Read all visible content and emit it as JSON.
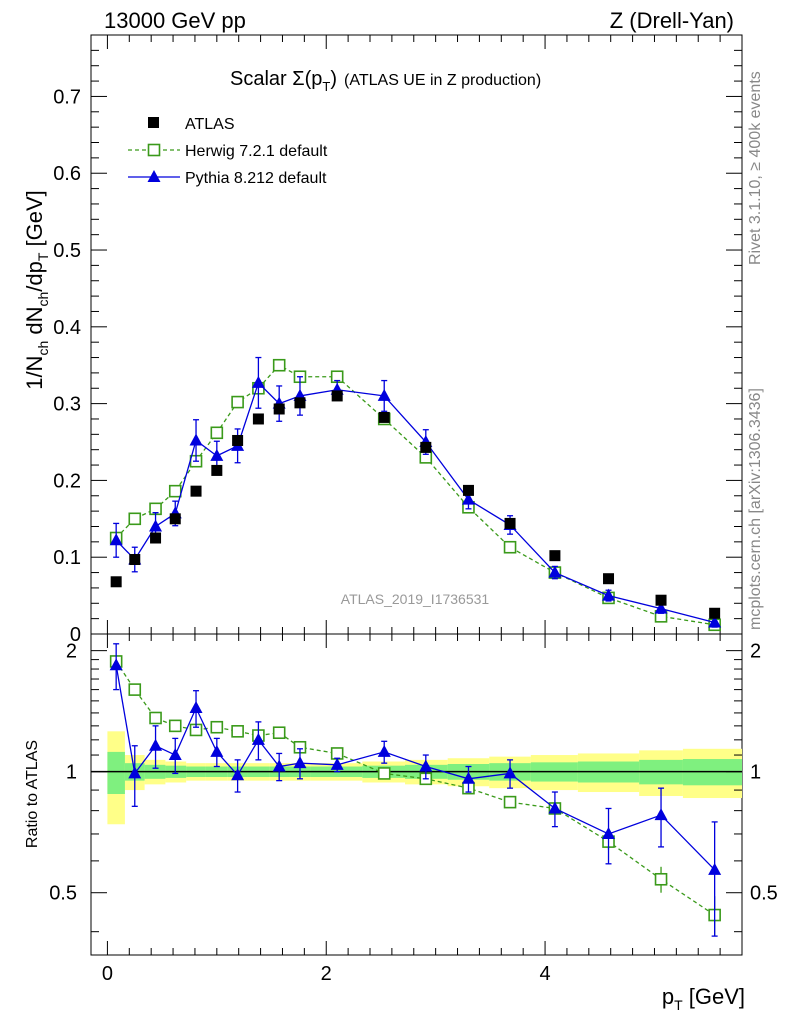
{
  "header": {
    "left": "13000 GeV pp",
    "right": "Z (Drell-Yan)"
  },
  "title": {
    "main": "Scalar Σ(p",
    "sub": "T",
    "close": ")",
    "suffix": "(ATLAS UE in Z production)"
  },
  "side_labels": {
    "rivet": "Rivet 3.1.10, ≥ 400k events",
    "mcplots": "mcplots.cern.ch [arXiv:1306.3436]"
  },
  "watermark": "ATLAS_2019_I1736531",
  "axes": {
    "ylabel_main": "1/N_ch dN_ch/dp_T [GeV]",
    "ylabel_ratio": "Ratio to ATLAS",
    "xlabel": "p_T [GeV]"
  },
  "colors": {
    "atlas": "#000000",
    "herwig": "#3a9a1a",
    "pythia": "#0000dd",
    "band_inner": "#7ff07f",
    "band_outer": "#ffff88"
  },
  "chart_data": [
    {
      "type": "scatter",
      "panel": "main",
      "title": "Scalar Σ(p_T) (ATLAS UE in Z production)",
      "xlabel": "p_T [GeV]",
      "ylabel": "1/N_ch dN_ch/dp_T [GeV]",
      "xlim": [
        -0.15,
        5.8
      ],
      "ylim": [
        0,
        0.78
      ],
      "yticks": [
        0,
        0.1,
        0.2,
        0.3,
        0.4,
        0.5,
        0.6,
        0.7
      ],
      "ytick_labels": [
        "0",
        "0.1",
        "0.2",
        "0.3",
        "0.4",
        "0.5",
        "0.6",
        "0.7"
      ],
      "legend_position": "top-left",
      "series": [
        {
          "name": "ATLAS",
          "style": "marker",
          "x": [
            0.08,
            0.25,
            0.44,
            0.62,
            0.81,
            1.0,
            1.19,
            1.38,
            1.57,
            1.76,
            2.1,
            2.53,
            2.91,
            3.3,
            3.68,
            4.09,
            4.58,
            5.06,
            5.55
          ],
          "y": [
            0.068,
            0.097,
            0.125,
            0.15,
            0.186,
            0.213,
            0.252,
            0.28,
            0.293,
            0.301,
            0.31,
            0.282,
            0.243,
            0.187,
            0.144,
            0.102,
            0.072,
            0.044,
            0.027
          ]
        },
        {
          "name": "Herwig 7.2.1 default",
          "style": "dashed-open-square",
          "x": [
            0.08,
            0.25,
            0.44,
            0.62,
            0.81,
            1.0,
            1.19,
            1.38,
            1.57,
            1.76,
            2.1,
            2.53,
            2.91,
            3.3,
            3.68,
            4.09,
            4.58,
            5.06,
            5.55
          ],
          "y": [
            0.125,
            0.15,
            0.163,
            0.186,
            0.225,
            0.262,
            0.302,
            0.32,
            0.35,
            0.335,
            0.335,
            0.28,
            0.23,
            0.165,
            0.113,
            0.08,
            0.047,
            0.023,
            0.012
          ],
          "yerr": [
            0.004,
            0.004,
            0.004,
            0.004,
            0.005,
            0.005,
            0.006,
            0.006,
            0.006,
            0.006,
            0.006,
            0.005,
            0.005,
            0.004,
            0.004,
            0.003,
            0.003,
            0.002,
            0.002
          ]
        },
        {
          "name": "Pythia 8.212 default",
          "style": "solid-triangle",
          "x": [
            0.08,
            0.25,
            0.44,
            0.62,
            0.81,
            1.0,
            1.19,
            1.38,
            1.57,
            1.76,
            2.1,
            2.53,
            2.91,
            3.3,
            3.68,
            4.09,
            4.58,
            5.06,
            5.55
          ],
          "y": [
            0.122,
            0.097,
            0.14,
            0.157,
            0.252,
            0.232,
            0.245,
            0.327,
            0.3,
            0.31,
            0.318,
            0.31,
            0.25,
            0.175,
            0.142,
            0.08,
            0.05,
            0.033,
            0.015
          ],
          "yerr": [
            0.022,
            0.016,
            0.018,
            0.016,
            0.027,
            0.019,
            0.022,
            0.033,
            0.023,
            0.025,
            0.012,
            0.02,
            0.016,
            0.012,
            0.012,
            0.008,
            0.007,
            0.006,
            0.006
          ]
        }
      ]
    },
    {
      "type": "scatter",
      "panel": "ratio",
      "xlabel": "p_T [GeV]",
      "ylabel": "Ratio to ATLAS",
      "xlim": [
        -0.15,
        5.8
      ],
      "ylim": [
        0.35,
        2.2
      ],
      "yticks": [
        0.5,
        1,
        2
      ],
      "ytick_labels": [
        "0.5",
        "1",
        "2"
      ],
      "xticks": [
        0,
        2,
        4
      ],
      "xtick_labels": [
        "0",
        "2",
        "4"
      ],
      "reference_line": 1,
      "band_edges": [
        0,
        0.16,
        0.34,
        0.53,
        0.72,
        0.9,
        1.1,
        1.28,
        1.48,
        1.66,
        1.86,
        2.33,
        2.72,
        3.11,
        3.49,
        3.87,
        4.3,
        4.86,
        5.26,
        5.85
      ],
      "band_inner": [
        0.12,
        0.05,
        0.04,
        0.035,
        0.03,
        0.03,
        0.03,
        0.03,
        0.03,
        0.03,
        0.03,
        0.035,
        0.04,
        0.045,
        0.05,
        0.055,
        0.06,
        0.07,
        0.075
      ],
      "band_outer": [
        0.26,
        0.1,
        0.07,
        0.06,
        0.05,
        0.05,
        0.05,
        0.05,
        0.05,
        0.05,
        0.05,
        0.06,
        0.07,
        0.08,
        0.09,
        0.1,
        0.11,
        0.13,
        0.14
      ],
      "series": [
        {
          "name": "Herwig 7.2.1 default",
          "style": "dashed-open-square",
          "x": [
            0.08,
            0.25,
            0.44,
            0.62,
            0.81,
            1.0,
            1.19,
            1.38,
            1.57,
            1.76,
            2.1,
            2.53,
            2.91,
            3.3,
            3.68,
            4.09,
            4.58,
            5.06,
            5.55
          ],
          "y": [
            1.88,
            1.6,
            1.36,
            1.3,
            1.27,
            1.29,
            1.26,
            1.23,
            1.25,
            1.15,
            1.11,
            0.99,
            0.96,
            0.91,
            0.84,
            0.81,
            0.67,
            0.54,
            0.44
          ],
          "yerr": [
            0.03,
            0.02,
            0.02,
            0.02,
            0.02,
            0.02,
            0.02,
            0.02,
            0.02,
            0.02,
            0.02,
            0.02,
            0.02,
            0.02,
            0.02,
            0.02,
            0.03,
            0.04,
            0.05
          ]
        },
        {
          "name": "Pythia 8.212 default",
          "style": "solid-triangle",
          "x": [
            0.08,
            0.25,
            0.44,
            0.62,
            0.81,
            1.0,
            1.19,
            1.38,
            1.57,
            1.76,
            2.1,
            2.53,
            2.91,
            3.3,
            3.68,
            4.09,
            4.58,
            5.06,
            5.55
          ],
          "y": [
            1.84,
            0.99,
            1.16,
            1.1,
            1.44,
            1.12,
            0.98,
            1.2,
            1.03,
            1.05,
            1.04,
            1.12,
            1.03,
            0.96,
            0.99,
            0.81,
            0.7,
            0.78,
            0.57
          ],
          "yerr": [
            0.24,
            0.17,
            0.14,
            0.11,
            0.15,
            0.09,
            0.09,
            0.13,
            0.08,
            0.09,
            0.04,
            0.07,
            0.07,
            0.07,
            0.08,
            0.08,
            0.11,
            0.13,
            0.18
          ]
        }
      ]
    }
  ]
}
